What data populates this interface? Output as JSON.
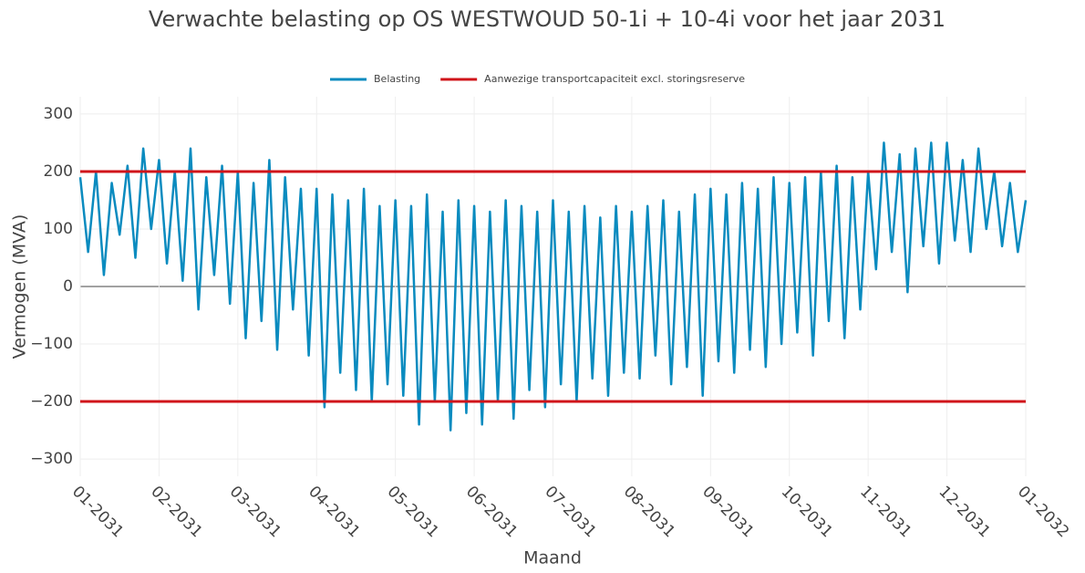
{
  "chart_data": {
    "type": "line",
    "title": "Verwachte belasting op OS WESTWOUD 50-1i + 10-4i voor het jaar 2031",
    "xlabel": "Maand",
    "ylabel": "Vermogen (MVA)",
    "series": [
      {
        "name": "Belasting",
        "color": "#0a8bbf",
        "x": [
          0,
          0.1,
          0.2,
          0.3,
          0.4,
          0.5,
          0.6,
          0.7,
          0.8,
          0.9,
          1,
          1.1,
          1.2,
          1.3,
          1.4,
          1.5,
          1.6,
          1.7,
          1.8,
          1.9,
          2,
          2.1,
          2.2,
          2.3,
          2.4,
          2.5,
          2.6,
          2.7,
          2.8,
          2.9,
          3,
          3.1,
          3.2,
          3.3,
          3.4,
          3.5,
          3.6,
          3.7,
          3.8,
          3.9,
          4,
          4.1,
          4.2,
          4.3,
          4.4,
          4.5,
          4.6,
          4.7,
          4.8,
          4.9,
          5,
          5.1,
          5.2,
          5.3,
          5.4,
          5.5,
          5.6,
          5.7,
          5.8,
          5.9,
          6,
          6.1,
          6.2,
          6.3,
          6.4,
          6.5,
          6.6,
          6.7,
          6.8,
          6.9,
          7,
          7.1,
          7.2,
          7.3,
          7.4,
          7.5,
          7.6,
          7.7,
          7.8,
          7.9,
          8,
          8.1,
          8.2,
          8.3,
          8.4,
          8.5,
          8.6,
          8.7,
          8.8,
          8.9,
          9,
          9.1,
          9.2,
          9.3,
          9.4,
          9.5,
          9.6,
          9.7,
          9.8,
          9.9,
          10,
          10.1,
          10.2,
          10.3,
          10.4,
          10.5,
          10.6,
          10.7,
          10.8,
          10.9,
          11,
          11.1,
          11.2,
          11.3,
          11.4,
          11.5,
          11.6,
          11.7,
          11.8,
          11.9,
          12
        ],
        "values": [
          190,
          60,
          200,
          20,
          180,
          90,
          210,
          50,
          240,
          100,
          220,
          40,
          200,
          10,
          240,
          -40,
          190,
          20,
          210,
          -30,
          200,
          -90,
          180,
          -60,
          220,
          -110,
          190,
          -40,
          170,
          -120,
          170,
          -210,
          160,
          -150,
          150,
          -180,
          170,
          -200,
          140,
          -170,
          150,
          -190,
          140,
          -240,
          160,
          -200,
          130,
          -250,
          150,
          -220,
          140,
          -240,
          130,
          -200,
          150,
          -230,
          140,
          -180,
          130,
          -210,
          150,
          -170,
          130,
          -200,
          140,
          -160,
          120,
          -190,
          140,
          -150,
          130,
          -160,
          140,
          -120,
          150,
          -170,
          130,
          -140,
          160,
          -190,
          170,
          -130,
          160,
          -150,
          180,
          -110,
          170,
          -140,
          190,
          -100,
          180,
          -80,
          190,
          -120,
          200,
          -60,
          210,
          -90,
          190,
          -40,
          200,
          30,
          250,
          60,
          230,
          -10,
          240,
          70,
          250,
          40,
          250,
          80,
          220,
          60,
          240,
          100,
          200,
          70,
          180,
          60,
          150
        ]
      },
      {
        "name": "Aanwezige transportcapaciteit excl. storingsreserve",
        "color": "#d0141a",
        "levels": [
          200,
          -200
        ]
      }
    ],
    "xlim": [
      0,
      12
    ],
    "xticks": [
      {
        "value": 0,
        "label": "01-2031"
      },
      {
        "value": 1,
        "label": "02-2031"
      },
      {
        "value": 2,
        "label": "03-2031"
      },
      {
        "value": 3,
        "label": "04-2031"
      },
      {
        "value": 4,
        "label": "05-2031"
      },
      {
        "value": 5,
        "label": "06-2031"
      },
      {
        "value": 6,
        "label": "07-2031"
      },
      {
        "value": 7,
        "label": "08-2031"
      },
      {
        "value": 8,
        "label": "09-2031"
      },
      {
        "value": 9,
        "label": "10-2031"
      },
      {
        "value": 10,
        "label": "11-2031"
      },
      {
        "value": 11,
        "label": "12-2031"
      },
      {
        "value": 12,
        "label": "01-2032"
      }
    ],
    "ylim": [
      -330,
      330
    ],
    "yticks": [
      {
        "value": -300,
        "label": "−300"
      },
      {
        "value": -200,
        "label": "−200"
      },
      {
        "value": -100,
        "label": "−100"
      },
      0,
      100,
      200,
      300
    ],
    "grid": true
  }
}
